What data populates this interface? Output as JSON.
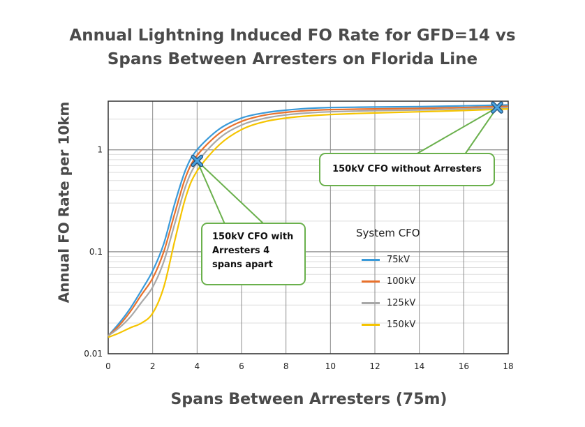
{
  "chart_data": {
    "type": "line",
    "title": [
      "Annual Lightning Induced FO Rate for GFD=14 vs",
      "Spans Between Arresters on Florida Line"
    ],
    "xlabel": "Spans Between Arresters (75m)",
    "ylabel": "Annual FO Rate per 10km",
    "xlim": [
      0,
      18
    ],
    "ylim": [
      0.01,
      3
    ],
    "yscale": "log",
    "grid": true,
    "x_ticks": [
      "0",
      "2",
      "4",
      "6",
      "8",
      "10",
      "12",
      "14",
      "16",
      "18"
    ],
    "y_ticks": [
      "0.01",
      "0.1",
      "1"
    ],
    "legend_title": "System CFO",
    "legend_position": "center-right",
    "series": [
      {
        "name": "75kV",
        "color": "#3a9ad9",
        "points": [
          [
            0,
            0.015
          ],
          [
            0.5,
            0.02
          ],
          [
            1,
            0.028
          ],
          [
            1.5,
            0.042
          ],
          [
            2,
            0.065
          ],
          [
            2.5,
            0.12
          ],
          [
            3,
            0.3
          ],
          [
            3.5,
            0.65
          ],
          [
            4,
            1.0
          ],
          [
            5,
            1.6
          ],
          [
            6,
            2.05
          ],
          [
            7,
            2.3
          ],
          [
            8,
            2.45
          ],
          [
            9,
            2.55
          ],
          [
            10,
            2.6
          ],
          [
            12,
            2.63
          ],
          [
            14,
            2.65
          ],
          [
            16,
            2.7
          ],
          [
            18,
            2.75
          ]
        ]
      },
      {
        "name": "100kV",
        "color": "#e8712c",
        "points": [
          [
            0,
            0.015
          ],
          [
            0.5,
            0.019
          ],
          [
            1,
            0.026
          ],
          [
            1.5,
            0.038
          ],
          [
            2,
            0.055
          ],
          [
            2.5,
            0.1
          ],
          [
            3,
            0.24
          ],
          [
            3.5,
            0.55
          ],
          [
            4,
            0.88
          ],
          [
            5,
            1.45
          ],
          [
            6,
            1.9
          ],
          [
            7,
            2.18
          ],
          [
            8,
            2.33
          ],
          [
            9,
            2.43
          ],
          [
            10,
            2.48
          ],
          [
            12,
            2.52
          ],
          [
            14,
            2.55
          ],
          [
            16,
            2.6
          ],
          [
            18,
            2.68
          ]
        ]
      },
      {
        "name": "125kV",
        "color": "#a8a8a8",
        "points": [
          [
            0,
            0.015
          ],
          [
            0.5,
            0.018
          ],
          [
            1,
            0.023
          ],
          [
            1.5,
            0.032
          ],
          [
            2,
            0.045
          ],
          [
            2.5,
            0.08
          ],
          [
            3,
            0.19
          ],
          [
            3.5,
            0.45
          ],
          [
            4,
            0.75
          ],
          [
            5,
            1.3
          ],
          [
            6,
            1.75
          ],
          [
            7,
            2.03
          ],
          [
            8,
            2.2
          ],
          [
            9,
            2.3
          ],
          [
            10,
            2.36
          ],
          [
            12,
            2.42
          ],
          [
            14,
            2.46
          ],
          [
            16,
            2.52
          ],
          [
            18,
            2.6
          ]
        ]
      },
      {
        "name": "150kV",
        "color": "#f5c400",
        "points": [
          [
            0,
            0.0145
          ],
          [
            0.5,
            0.016
          ],
          [
            1,
            0.018
          ],
          [
            1.5,
            0.02
          ],
          [
            2,
            0.025
          ],
          [
            2.5,
            0.045
          ],
          [
            3,
            0.13
          ],
          [
            3.5,
            0.35
          ],
          [
            4,
            0.62
          ],
          [
            5,
            1.12
          ],
          [
            6,
            1.58
          ],
          [
            7,
            1.88
          ],
          [
            8,
            2.05
          ],
          [
            9,
            2.15
          ],
          [
            10,
            2.22
          ],
          [
            12,
            2.3
          ],
          [
            14,
            2.36
          ],
          [
            16,
            2.43
          ],
          [
            18,
            2.52
          ]
        ]
      }
    ],
    "markers": [
      {
        "x": 4,
        "y": 0.78,
        "symbol": "x"
      },
      {
        "x": 17.5,
        "y": 2.6,
        "symbol": "x"
      }
    ],
    "annotations": [
      {
        "lines": [
          "150kV CFO without Arresters"
        ],
        "points_to_marker": 1
      },
      {
        "lines": [
          "150kV CFO with",
          "Arresters 4",
          "spans apart"
        ],
        "points_to_marker": 0
      }
    ]
  }
}
